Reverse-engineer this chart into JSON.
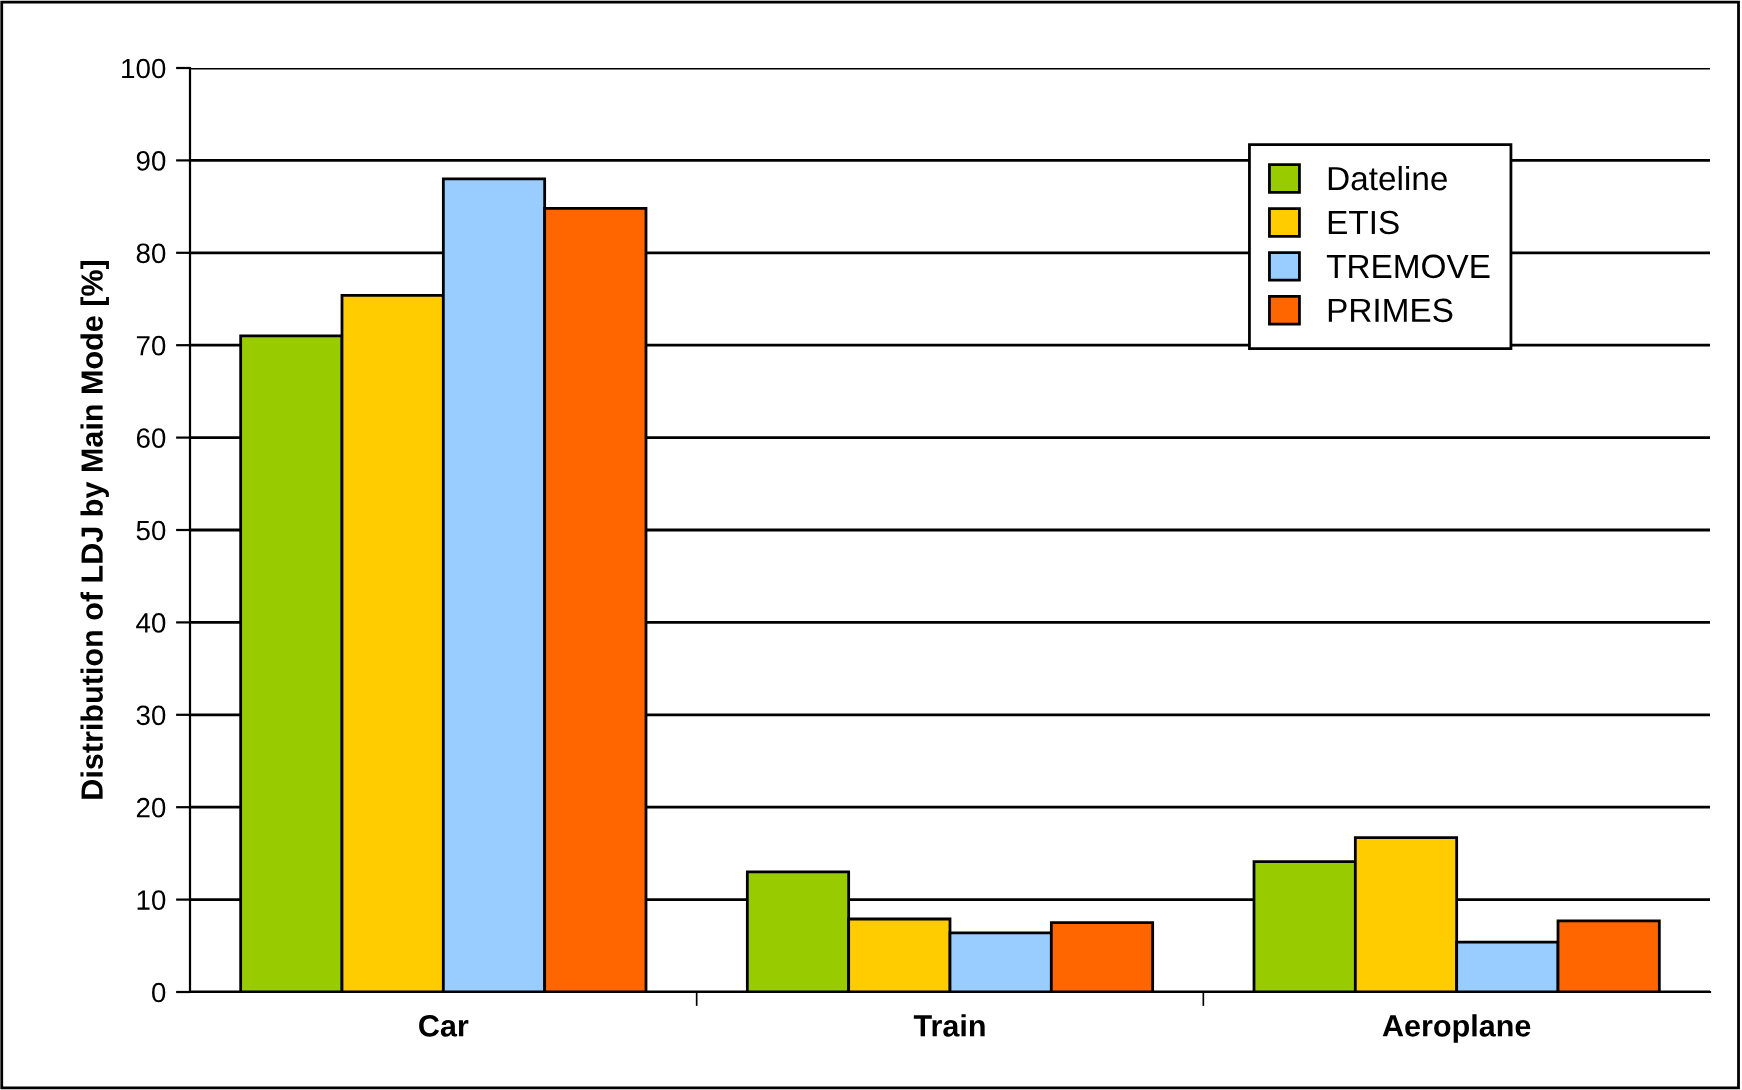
{
  "chart_data": {
    "type": "bar",
    "ylabel": "Distribution of LDJ by Main Mode [%]",
    "categories": [
      "Car",
      "Train",
      "Aeroplane"
    ],
    "series": [
      {
        "name": "Dateline",
        "color": "#99cc00",
        "values": [
          71.0,
          13.0,
          14.1
        ]
      },
      {
        "name": "ETIS",
        "color": "#ffcc00",
        "values": [
          75.4,
          7.9,
          16.7
        ]
      },
      {
        "name": "TREMOVE",
        "color": "#99ccff",
        "values": [
          88.0,
          6.4,
          5.4
        ]
      },
      {
        "name": "PRIMES",
        "color": "#ff6600",
        "values": [
          84.8,
          7.5,
          7.7
        ]
      }
    ],
    "ylim": [
      0,
      100
    ],
    "yticks": [
      0,
      10,
      20,
      30,
      40,
      50,
      60,
      70,
      80,
      90,
      100
    ],
    "grid": "y",
    "legend": "top right"
  }
}
